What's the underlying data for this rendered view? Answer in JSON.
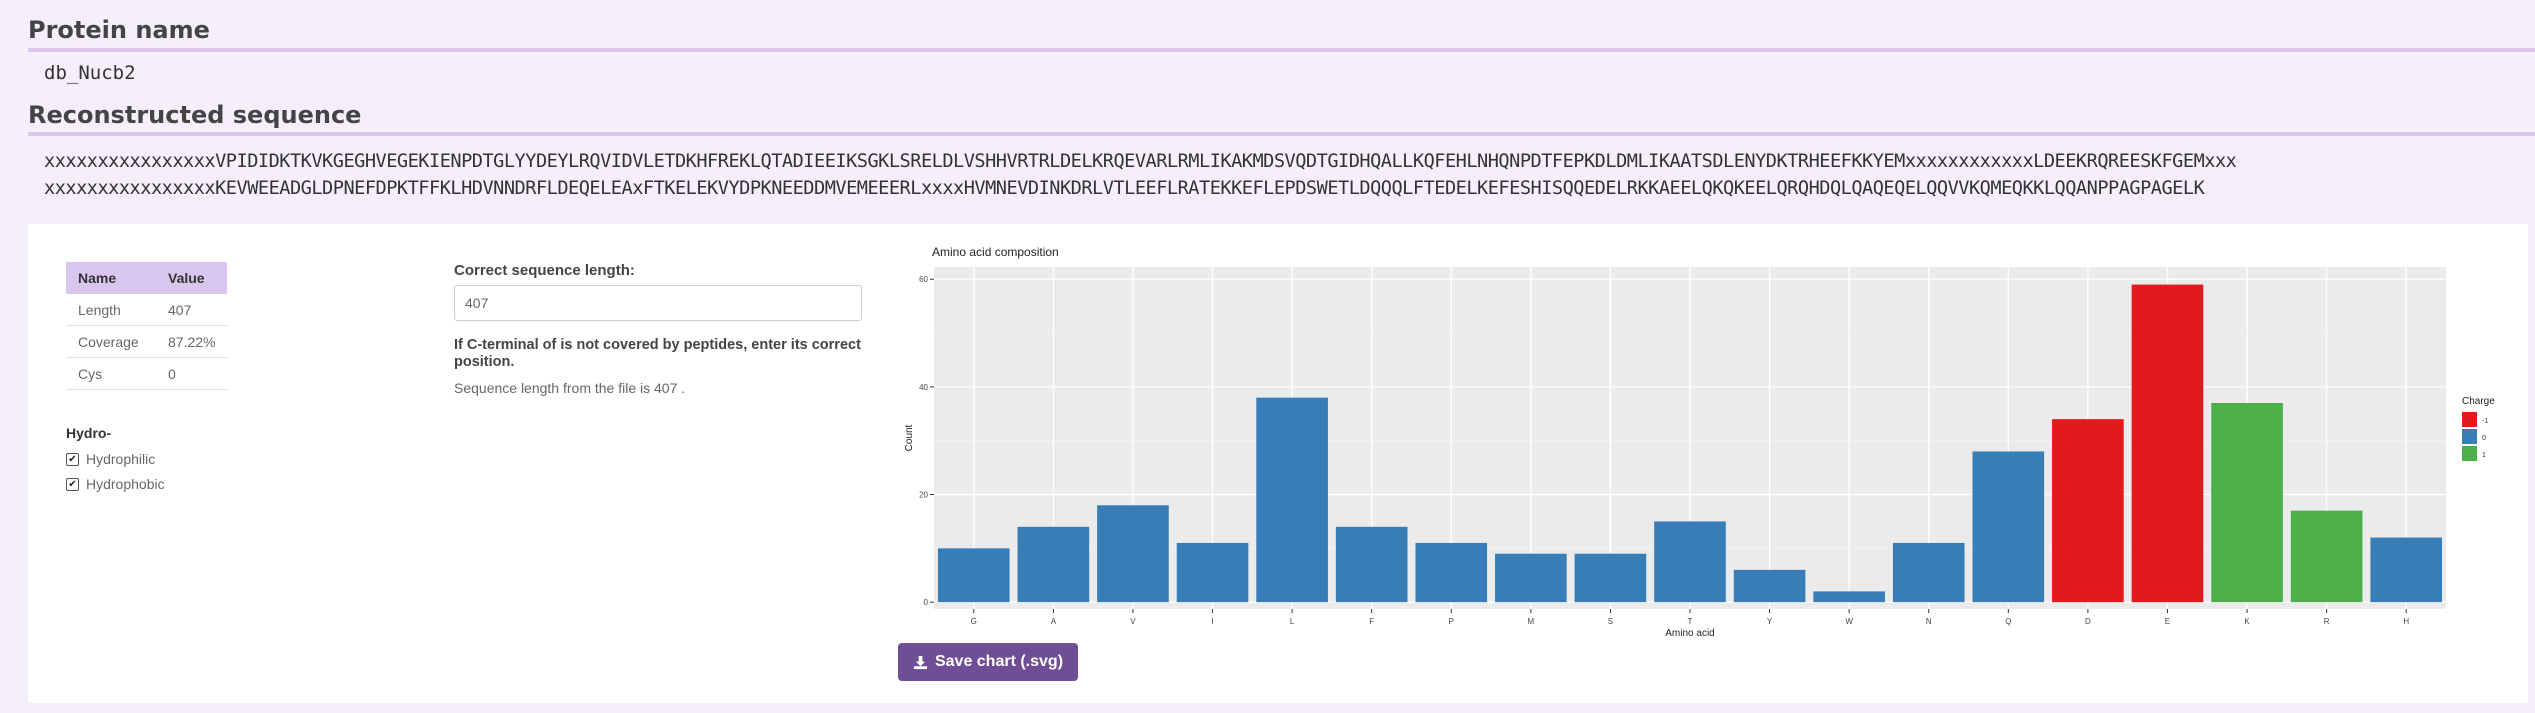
{
  "protein": {
    "name_heading": "Protein name",
    "name_value": "db_Nucb2"
  },
  "sequence": {
    "heading": "Reconstructed sequence",
    "line1": "xxxxxxxxxxxxxxxxVPIDIDKTKVKGEGHVEGEKIENPDTGLYYDEYLRQVIDVLETDKHFREKLQTADIEEIKSGKLSRELDLVSHHVRTRLDELKRQEVARLRMLIKAKMDSVQDTGIDHQALLKQFEHLNHQNPDTFEPKDLDMLIKAATSDLENYDKTRHEEFKKYEMxxxxxxxxxxxxLDEEKRQREESKFGEMxxx",
    "line2": "xxxxxxxxxxxxxxxxKEVWEEADGLDPNEFDPKTFFKLHDVNNDRFLDEQELEAxFTKELEKVYDPKNEEDDMVEMEEERLxxxxHVMNEVDINKDRLVTLEEFLRATEKKEFLEPDSWETLDQQQLFTEDELKEFESHISQQEDELRKKAEELQKQKEELQRQHDQLQAQEQELQQVVKQMEQKKLQQANPPAGPAGELK"
  },
  "stats": {
    "headers": [
      "Name",
      "Value"
    ],
    "rows": [
      [
        "Length",
        "407"
      ],
      [
        "Coverage",
        "87.22%"
      ],
      [
        "Cys",
        "0"
      ]
    ]
  },
  "hydro": {
    "title": "Hydro-",
    "options": [
      {
        "label": "Hydrophilic",
        "checked": true
      },
      {
        "label": "Hydrophobic",
        "checked": true
      }
    ]
  },
  "form": {
    "label": "Correct sequence length:",
    "value": "407",
    "help_bold": "If C-terminal of is not covered by peptides, enter its correct position.",
    "help_text": "Sequence length from the file is 407 ."
  },
  "save_button_label": "Save chart (.svg)",
  "icons": {
    "save": "download-icon",
    "checkbox": "checkmark-icon"
  },
  "chart_data": {
    "type": "bar",
    "title": "Amino acid composition",
    "xlabel": "Amino acid",
    "ylabel": "Count",
    "ylim": [
      0,
      61
    ],
    "yticks": [
      0,
      20,
      40,
      60
    ],
    "grid": true,
    "legend_position": "right",
    "categories": [
      "G",
      "A",
      "V",
      "I",
      "L",
      "F",
      "P",
      "M",
      "S",
      "T",
      "Y",
      "W",
      "N",
      "Q",
      "D",
      "E",
      "K",
      "R",
      "H"
    ],
    "values": [
      10,
      14,
      18,
      11,
      38,
      14,
      11,
      9,
      9,
      15,
      6,
      2,
      11,
      28,
      34,
      59,
      37,
      17,
      12
    ],
    "charge": [
      "0",
      "0",
      "0",
      "0",
      "0",
      "0",
      "0",
      "0",
      "0",
      "0",
      "0",
      "0",
      "0",
      "0",
      "-1",
      "-1",
      "1",
      "1",
      "0"
    ],
    "legend": {
      "title": "Charge",
      "entries": [
        {
          "label": "-1",
          "color": "#e31a1c"
        },
        {
          "label": "0",
          "color": "#377eb8"
        },
        {
          "label": "1",
          "color": "#4daf4a"
        }
      ]
    },
    "panel_color": "#ebebeb"
  }
}
